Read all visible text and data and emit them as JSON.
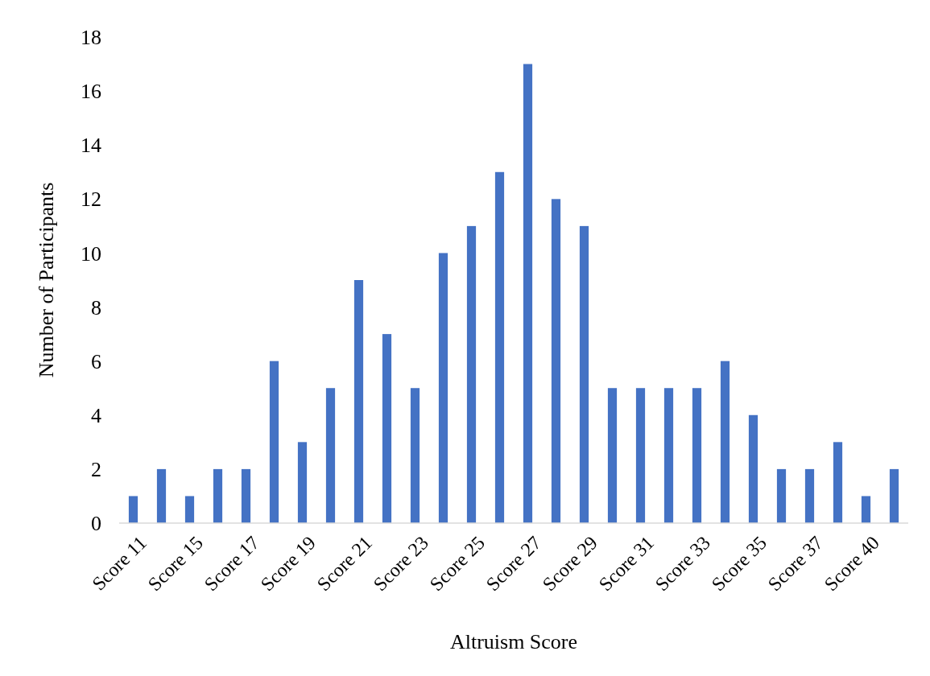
{
  "chart_data": {
    "type": "bar",
    "xlabel": "Altruism Score",
    "ylabel": "Number of Participants",
    "categories": [
      "Score 11",
      null,
      "Score 15",
      null,
      "Score 17",
      null,
      "Score 19",
      null,
      "Score 21",
      null,
      "Score 23",
      null,
      "Score 25",
      null,
      "Score 27",
      null,
      "Score 29",
      null,
      "Score 31",
      null,
      "Score 33",
      null,
      "Score 35",
      null,
      "Score 37",
      null,
      "Score 40",
      null
    ],
    "values": [
      1,
      2,
      1,
      2,
      2,
      6,
      3,
      5,
      9,
      7,
      5,
      10,
      11,
      13,
      17,
      12,
      11,
      5,
      5,
      5,
      5,
      6,
      4,
      2,
      2,
      3,
      1,
      2
    ],
    "color": "#4472c4",
    "ylim": [
      0,
      18
    ],
    "yticks": [
      0,
      2,
      4,
      6,
      8,
      10,
      12,
      14,
      16,
      18
    ],
    "grid": false
  }
}
